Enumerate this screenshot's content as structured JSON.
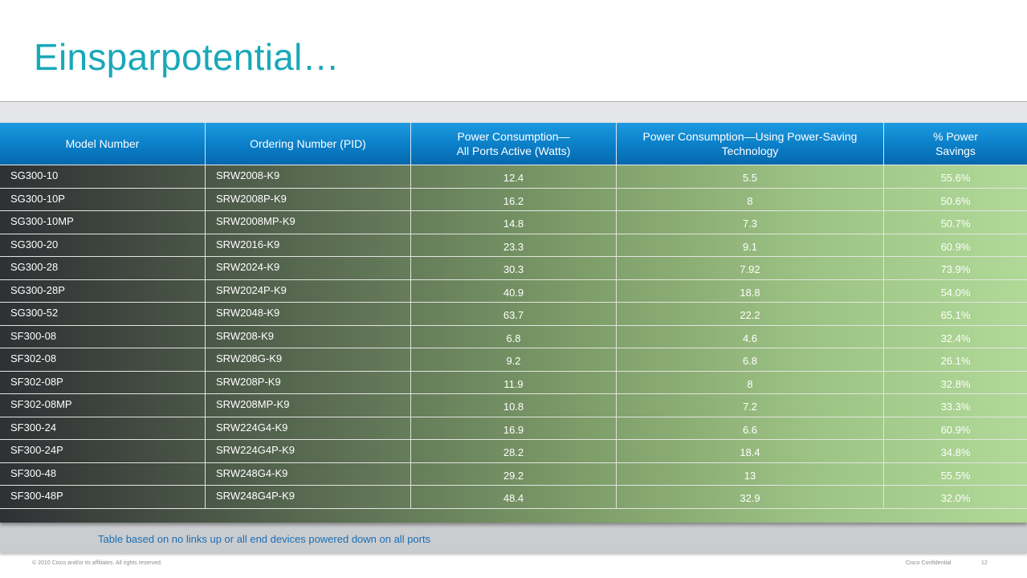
{
  "title": "Einsparpotential…",
  "table": {
    "headers": [
      "Model Number",
      "Ordering Number (PID)",
      "Power Consumption—\nAll Ports Active (Watts)",
      "Power Consumption—Using Power-Saving Technology",
      "% Power\nSavings"
    ],
    "rows": [
      [
        "SG300-10",
        "SRW2008-K9",
        "12.4",
        "5.5",
        "55.6%"
      ],
      [
        "SG300-10P",
        "SRW2008P-K9",
        "16.2",
        "8",
        "50.6%"
      ],
      [
        "SG300-10MP",
        "SRW2008MP-K9",
        "14.8",
        "7.3",
        "50.7%"
      ],
      [
        "SG300-20",
        "SRW2016-K9",
        "23.3",
        "9.1",
        "60.9%"
      ],
      [
        "SG300-28",
        "SRW2024-K9",
        "30.3",
        "7.92",
        "73.9%"
      ],
      [
        "SG300-28P",
        "SRW2024P-K9",
        "40.9",
        "18.8",
        "54.0%"
      ],
      [
        "SG300-52",
        "SRW2048-K9",
        "63.7",
        "22.2",
        "65.1%"
      ],
      [
        "SF300-08",
        "SRW208-K9",
        "6.8",
        "4.6",
        "32.4%"
      ],
      [
        "SF302-08",
        "SRW208G-K9",
        "9.2",
        "6.8",
        "26.1%"
      ],
      [
        "SF302-08P",
        "SRW208P-K9",
        "11.9",
        "8",
        "32.8%"
      ],
      [
        "SF302-08MP",
        "SRW208MP-K9",
        "10.8",
        "7.2",
        "33.3%"
      ],
      [
        "SF300-24",
        "SRW224G4-K9",
        "16.9",
        "6.6",
        "60.9%"
      ],
      [
        "SF300-24P",
        "SRW224G4P-K9",
        "28.2",
        "18.4",
        "34.8%"
      ],
      [
        "SF300-48",
        "SRW248G4-K9",
        "29.2",
        "13",
        "55.5%"
      ],
      [
        "SF300-48P",
        "SRW248G4P-K9",
        "48.4",
        "32.9",
        "32.0%"
      ]
    ]
  },
  "note": "Table based on no links up or all end devices powered down on all ports",
  "footer": {
    "copyright": "© 2010 Cisco and/or its affiliates. All rights reserved.",
    "confidential": "Cisco Confidential",
    "page_number": "12"
  }
}
